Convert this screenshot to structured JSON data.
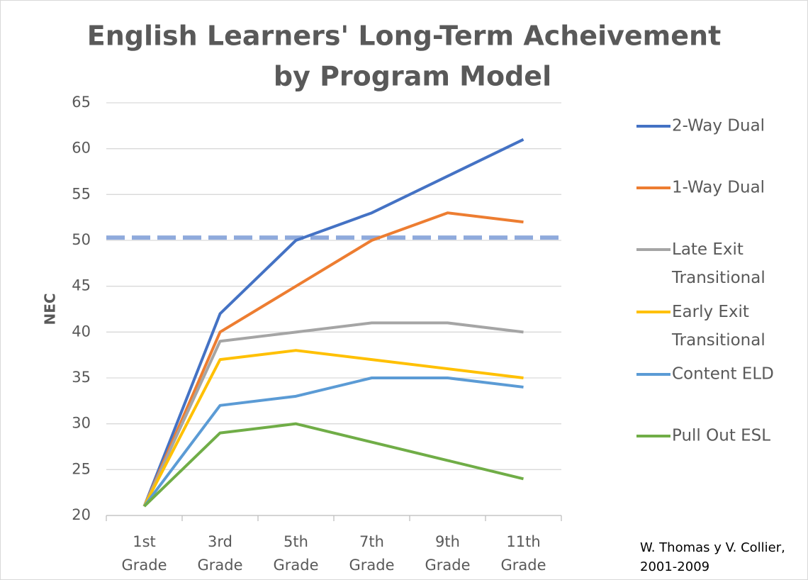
{
  "chart_data": {
    "type": "line",
    "title": [
      "English Learners' Long-Term Acheivement",
      "by Program Model"
    ],
    "y_label": "NEC",
    "categories": [
      "1st Grade",
      "3rd Grade",
      "5th Grade",
      "7th Grade",
      "9th Grade",
      "11th Grade"
    ],
    "series": [
      {
        "name": "2-Way Dual",
        "color": "#4472c4",
        "values": [
          21,
          42,
          50,
          53,
          57,
          61
        ]
      },
      {
        "name": "1-Way Dual",
        "color": "#ed7d31",
        "values": [
          21,
          40,
          45,
          50,
          53,
          52
        ]
      },
      {
        "name": "Late Exit Transitional",
        "color": "#a5a5a5",
        "values": [
          21,
          39,
          40,
          41,
          41,
          40
        ]
      },
      {
        "name": "Early Exit Transitional",
        "color": "#ffc000",
        "values": [
          21,
          37,
          38,
          37,
          36,
          35
        ]
      },
      {
        "name": "Content ELD",
        "color": "#5b9bd5",
        "values": [
          21,
          32,
          33,
          35,
          35,
          34
        ]
      },
      {
        "name": "Pull Out ESL",
        "color": "#70ad47",
        "values": [
          21,
          29,
          30,
          28,
          26,
          24
        ]
      }
    ],
    "reference_line": {
      "value": 50.3,
      "color": "#8faadc"
    },
    "ylim": [
      20,
      65
    ],
    "yticks": [
      20,
      25,
      30,
      35,
      40,
      45,
      50,
      55,
      60,
      65
    ],
    "grid": true,
    "legend": "right",
    "source": [
      "W. Thomas y V. Collier,",
      "2001-2009"
    ]
  }
}
